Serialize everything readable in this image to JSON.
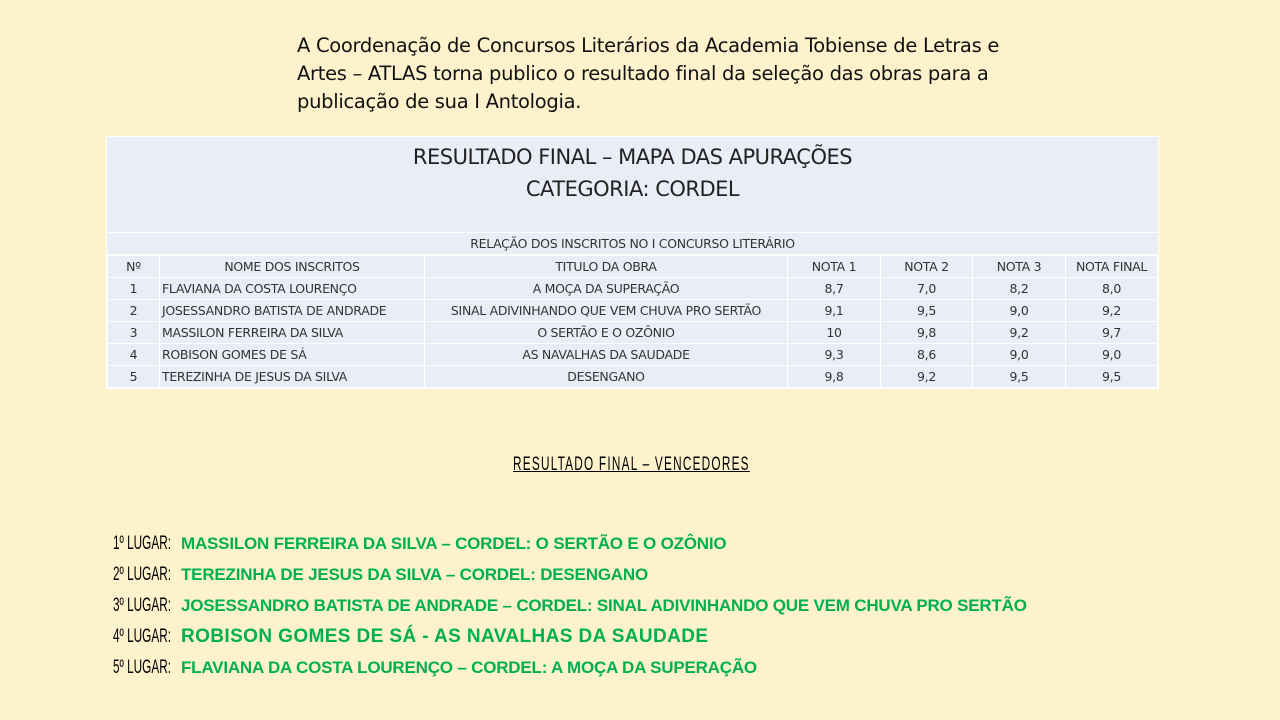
{
  "intro": "A Coordenação de Concursos Literários da Academia  Tobiense de Letras e Artes – ATLAS torna publico o resultado final da seleção das obras para a publicação de sua I Antologia.",
  "table": {
    "title": "RESULTADO FINAL – MAPA DAS APURAÇÕES",
    "category": "CATEGORIA: CORDEL",
    "subtitle": "RELAÇÃO DOS INSCRITOS NO I CONCURSO LITERÁRIO",
    "columns": [
      "Nº",
      "NOME DOS INSCRITOS",
      "TITULO DA OBRA",
      "NOTA 1",
      "NOTA 2",
      "NOTA 3",
      "NOTA FINAL"
    ],
    "rows": [
      [
        "1",
        "FLAVIANA DA COSTA LOURENÇO",
        "A MOÇA DA SUPERAÇÃO",
        "8,7",
        "7,0",
        "8,2",
        "8,0"
      ],
      [
        "2",
        "JOSESSANDRO BATISTA DE ANDRADE",
        "SINAL ADIVINHANDO QUE VEM CHUVA PRO SERTÃO",
        "9,1",
        "9,5",
        "9,0",
        "9,2"
      ],
      [
        "3",
        "MASSILON FERREIRA DA SILVA",
        "O SERTÃO E O OZÔNIO",
        "10",
        "9,8",
        "9,2",
        "9,7"
      ],
      [
        "4",
        "ROBISON GOMES DE SÁ",
        "AS NAVALHAS  DA SAUDADE",
        "9,3",
        "8,6",
        "9,0",
        "9,0"
      ],
      [
        "5",
        "TEREZINHA DE JESUS  DA SILVA",
        "DESENGANO",
        "9,8",
        "9,2",
        "9,5",
        "9,5"
      ]
    ]
  },
  "winners": {
    "title": "RESULTADO  FINAL  – VENCEDORES",
    "items": [
      {
        "place": "1º LUGAR:",
        "text": "MASSILON FERREIRA DA SILVA – CORDEL: O SERTÃO E O OZÔNIO"
      },
      {
        "place": "2º LUGAR:",
        "text": "TEREZINHA DE JESUS DA SILVA – CORDEL: DESENGANO"
      },
      {
        "place": "3º LUGAR:",
        "text": "JOSESSANDRO BATISTA DE ANDRADE – CORDEL: SINAL ADIVINHANDO QUE VEM CHUVA PRO SERTÃO"
      },
      {
        "place": "4º LUGAR:",
        "text": "ROBISON  GOMES  DE  SÁ  - AS NAVALHAS  DA SAUDADE"
      },
      {
        "place": "5º LUGAR:",
        "text": "FLAVIANA DA COSTA LOURENÇO – CORDEL: A MOÇA DA SUPERAÇÃO"
      }
    ]
  },
  "colors": {
    "background": "#fef2cc",
    "table": "#e9edf5",
    "winner_green": "#00b050"
  }
}
